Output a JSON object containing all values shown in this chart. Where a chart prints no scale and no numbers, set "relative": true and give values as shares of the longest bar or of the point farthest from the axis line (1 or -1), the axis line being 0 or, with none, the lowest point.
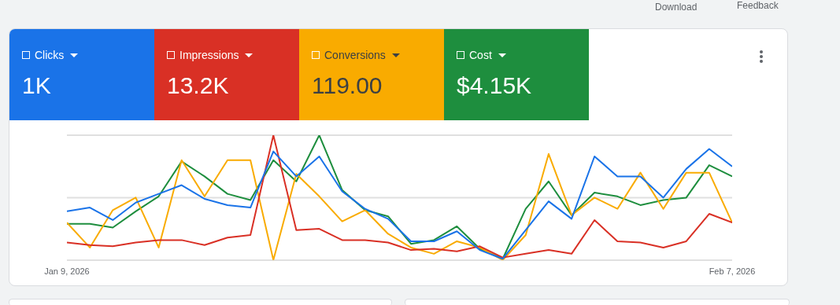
{
  "chart_data": {
    "type": "line",
    "relative": true,
    "x": [
      "2026-01-09",
      "2026-01-10",
      "2026-01-11",
      "2026-01-12",
      "2026-01-13",
      "2026-01-14",
      "2026-01-15",
      "2026-01-16",
      "2026-01-17",
      "2026-01-18",
      "2026-01-19",
      "2026-01-20",
      "2026-01-21",
      "2026-01-22",
      "2026-01-23",
      "2026-01-24",
      "2026-01-25",
      "2026-01-26",
      "2026-01-27",
      "2026-01-28",
      "2026-01-29",
      "2026-01-30",
      "2026-01-31",
      "2026-02-01",
      "2026-02-02",
      "2026-02-03",
      "2026-02-04",
      "2026-02-05",
      "2026-02-06",
      "2026-02-07"
    ],
    "xlim": [
      "2026-01-09",
      "2026-02-07"
    ],
    "xticks": [
      {
        "value": "2026-01-09",
        "label": "Jan 9, 2026"
      },
      {
        "value": "2026-02-07",
        "label": "Feb 7, 2026"
      }
    ],
    "series": [
      {
        "name": "Clicks",
        "color": "#1a73e8",
        "values": [
          0.39,
          0.42,
          0.32,
          0.46,
          0.53,
          0.6,
          0.49,
          0.44,
          0.42,
          0.87,
          0.67,
          0.83,
          0.55,
          0.41,
          0.33,
          0.15,
          0.15,
          0.23,
          0.08,
          0.01,
          0.24,
          0.47,
          0.33,
          0.83,
          0.67,
          0.67,
          0.5,
          0.73,
          0.89,
          0.75
        ]
      },
      {
        "name": "Impressions",
        "color": "#d93025",
        "values": [
          0.14,
          0.12,
          0.11,
          0.14,
          0.16,
          0.16,
          0.12,
          0.18,
          0.2,
          1,
          0.24,
          0.25,
          0.16,
          0.16,
          0.14,
          0.08,
          0.09,
          0.07,
          0.11,
          0.02,
          0.05,
          0.08,
          0.05,
          0.32,
          0.15,
          0.14,
          0.1,
          0.15,
          0.37,
          0.3
        ]
      },
      {
        "name": "Conversions",
        "color": "#f9ab00",
        "values": [
          0.3,
          0.1,
          0.4,
          0.5,
          0.1,
          0.8,
          0.51,
          0.8,
          0.8,
          0,
          0.69,
          0.51,
          0.31,
          0.4,
          0.21,
          0.1,
          0.05,
          0.15,
          0.1,
          0,
          0.2,
          0.85,
          0.36,
          0.5,
          0.41,
          0.7,
          0.41,
          0.7,
          0.7,
          0.3
        ]
      },
      {
        "name": "Cost",
        "color": "#1e8e3e",
        "values": [
          0.29,
          0.29,
          0.26,
          0.39,
          0.51,
          0.79,
          0.67,
          0.53,
          0.48,
          0.8,
          0.63,
          1,
          0.56,
          0.4,
          0.35,
          0.13,
          0.16,
          0.27,
          0.09,
          0.01,
          0.41,
          0.63,
          0.36,
          0.54,
          0.51,
          0.44,
          0.48,
          0.5,
          0.76,
          0.67
        ]
      }
    ],
    "annotations": [
      "1K",
      "13.2K",
      "119.00",
      "$4.15K",
      "Download",
      "Feedback"
    ],
    "ref_lines": [
      {
        "axis": "y",
        "value": 0.5,
        "color": "#e0e0e0"
      }
    ],
    "legend": "top left",
    "marker": "none",
    "line_style": "solid"
  }
}
